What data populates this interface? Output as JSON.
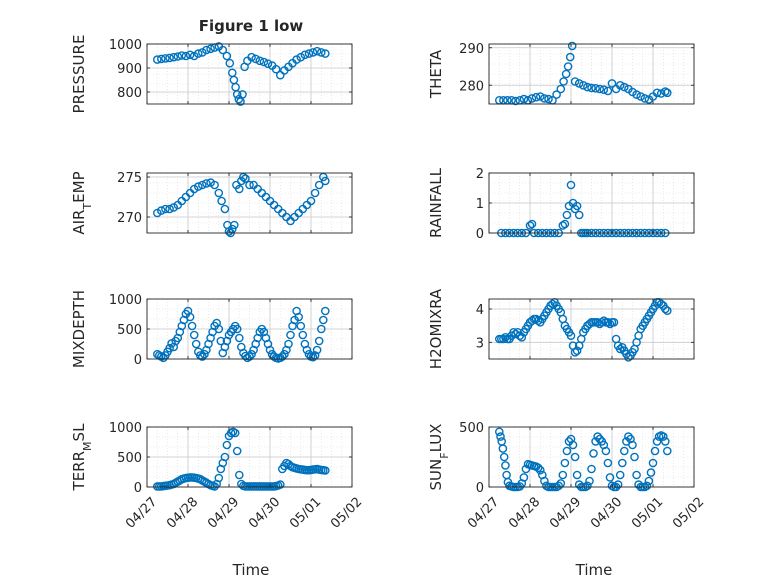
{
  "figure": {
    "title": "Figure 1 low",
    "xlabel": "Time",
    "marker_color": "#0072BD",
    "axis_color": "#262626",
    "grid_color": "#d9d9d9"
  },
  "x_axis": {
    "type": "date",
    "range": [
      "04/27",
      "05/02"
    ],
    "ticks": [
      "04/27",
      "04/28",
      "04/29",
      "04/30",
      "05/01",
      "05/02"
    ],
    "tick_values": [
      0,
      1,
      2,
      3,
      4,
      5
    ]
  },
  "chart_data": [
    {
      "type": "scatter",
      "ylabel": "PRESSURE",
      "ylim": [
        750,
        1000
      ],
      "yticks": [
        800,
        900,
        1000
      ],
      "grid": "on",
      "x": [
        0.25,
        0.35,
        0.45,
        0.55,
        0.65,
        0.75,
        0.85,
        0.95,
        1.05,
        1.15,
        1.25,
        1.35,
        1.45,
        1.55,
        1.65,
        1.75,
        1.85,
        1.95,
        2.02,
        2.08,
        2.12,
        2.16,
        2.2,
        2.24,
        2.28,
        2.33,
        2.38,
        2.45,
        2.55,
        2.65,
        2.75,
        2.85,
        2.95,
        3.05,
        3.15,
        3.25,
        3.35,
        3.45,
        3.55,
        3.65,
        3.75,
        3.85,
        3.95,
        4.05,
        4.15,
        4.25,
        4.35
      ],
      "y": [
        935,
        938,
        940,
        942,
        945,
        948,
        952,
        950,
        955,
        950,
        960,
        965,
        975,
        980,
        985,
        990,
        975,
        950,
        920,
        880,
        850,
        820,
        790,
        770,
        760,
        790,
        905,
        930,
        945,
        938,
        930,
        925,
        918,
        910,
        895,
        870,
        890,
        905,
        920,
        935,
        945,
        955,
        960,
        965,
        970,
        965,
        960
      ]
    },
    {
      "type": "scatter",
      "ylabel": "THETA",
      "ylim": [
        275,
        291
      ],
      "yticks": [
        280,
        290
      ],
      "grid": "on",
      "x": [
        0.25,
        0.35,
        0.45,
        0.55,
        0.65,
        0.75,
        0.85,
        0.95,
        1.05,
        1.15,
        1.25,
        1.35,
        1.45,
        1.55,
        1.65,
        1.75,
        1.82,
        1.88,
        1.93,
        1.98,
        2.03,
        2.1,
        2.2,
        2.3,
        2.4,
        2.5,
        2.6,
        2.7,
        2.8,
        2.9,
        3.0,
        3.1,
        3.2,
        3.3,
        3.4,
        3.5,
        3.6,
        3.7,
        3.8,
        3.9,
        4.0,
        4.1,
        4.2,
        4.3,
        4.35
      ],
      "y": [
        276,
        276,
        276,
        276,
        275.8,
        276,
        276.3,
        276,
        276.5,
        276.8,
        277,
        276.5,
        276.3,
        276,
        277.5,
        279,
        281,
        283,
        285,
        287.5,
        290.5,
        281,
        280.5,
        280,
        279.5,
        279.3,
        279.2,
        279,
        278.8,
        278.5,
        280.5,
        279,
        280,
        279.5,
        279,
        278.2,
        277.5,
        277,
        276.5,
        276.2,
        277,
        278,
        277.8,
        278.3,
        278
      ]
    },
    {
      "type": "scatter",
      "ylabel": "AIR_TEMP",
      "ylabel_display": {
        "base": "AIR",
        "sub": "T",
        "rest": "EMP"
      },
      "ylim": [
        268,
        275.5
      ],
      "yticks": [
        270,
        275
      ],
      "grid": "on",
      "x": [
        0.25,
        0.35,
        0.45,
        0.55,
        0.65,
        0.75,
        0.85,
        0.95,
        1.05,
        1.15,
        1.25,
        1.35,
        1.45,
        1.55,
        1.65,
        1.75,
        1.82,
        1.9,
        1.96,
        2.0,
        2.04,
        2.08,
        2.13,
        2.18,
        2.25,
        2.3,
        2.35,
        2.4,
        2.5,
        2.6,
        2.7,
        2.8,
        2.9,
        3.0,
        3.1,
        3.2,
        3.3,
        3.4,
        3.5,
        3.6,
        3.7,
        3.8,
        3.9,
        4.0,
        4.1,
        4.2,
        4.3,
        4.35
      ],
      "y": [
        270.5,
        270.8,
        271,
        271,
        271.2,
        271.5,
        272,
        272.5,
        273,
        273.5,
        273.8,
        274,
        274.2,
        274.3,
        274,
        273,
        272,
        271,
        269,
        268.2,
        268,
        268.5,
        269,
        274,
        273.5,
        274.5,
        275,
        274.8,
        274,
        274,
        273.5,
        273,
        272.5,
        272,
        271.5,
        271,
        270.5,
        270,
        269.5,
        270,
        270.5,
        271,
        271.5,
        272,
        273,
        274,
        275,
        274.5
      ]
    },
    {
      "type": "scatter",
      "ylabel": "RAINFALL",
      "ylim": [
        0,
        2
      ],
      "yticks": [
        0,
        1,
        2
      ],
      "grid": "on",
      "x": [
        0.3,
        0.4,
        0.5,
        0.6,
        0.7,
        0.8,
        0.9,
        1.0,
        1.05,
        1.1,
        1.2,
        1.3,
        1.4,
        1.5,
        1.6,
        1.7,
        1.8,
        1.85,
        1.9,
        1.95,
        2.0,
        2.05,
        2.1,
        2.15,
        2.2,
        2.25,
        2.3,
        2.35,
        2.4,
        2.5,
        2.6,
        2.7,
        2.8,
        2.9,
        3.0,
        3.1,
        3.2,
        3.3,
        3.4,
        3.5,
        3.6,
        3.7,
        3.8,
        3.9,
        4.0,
        4.1,
        4.2,
        4.3
      ],
      "y": [
        0,
        0,
        0,
        0,
        0,
        0,
        0,
        0.25,
        0.3,
        0,
        0,
        0,
        0,
        0,
        0,
        0,
        0.25,
        0.3,
        0.6,
        0.9,
        1.6,
        1.0,
        0.8,
        0.9,
        0.6,
        0,
        0,
        0,
        0,
        0,
        0,
        0,
        0,
        0,
        0,
        0,
        0,
        0,
        0,
        0,
        0,
        0,
        0,
        0,
        0,
        0,
        0,
        0
      ]
    },
    {
      "type": "scatter",
      "ylabel": "MIXDEPTH",
      "ylim": [
        0,
        1000
      ],
      "yticks": [
        0,
        500,
        1000
      ],
      "grid": "on",
      "x": [
        0.25,
        0.3,
        0.35,
        0.4,
        0.45,
        0.5,
        0.55,
        0.6,
        0.65,
        0.7,
        0.75,
        0.8,
        0.85,
        0.9,
        0.95,
        1.0,
        1.05,
        1.1,
        1.15,
        1.2,
        1.25,
        1.3,
        1.35,
        1.4,
        1.45,
        1.5,
        1.55,
        1.6,
        1.65,
        1.7,
        1.75,
        1.8,
        1.85,
        1.9,
        1.95,
        2.0,
        2.05,
        2.1,
        2.15,
        2.2,
        2.25,
        2.3,
        2.35,
        2.4,
        2.45,
        2.5,
        2.55,
        2.6,
        2.65,
        2.7,
        2.75,
        2.8,
        2.85,
        2.9,
        2.95,
        3.0,
        3.05,
        3.1,
        3.15,
        3.2,
        3.25,
        3.3,
        3.35,
        3.4,
        3.45,
        3.5,
        3.55,
        3.6,
        3.65,
        3.7,
        3.75,
        3.8,
        3.85,
        3.9,
        3.95,
        4.0,
        4.05,
        4.1,
        4.15,
        4.2,
        4.25,
        4.3,
        4.35
      ],
      "y": [
        80,
        60,
        40,
        20,
        60,
        120,
        180,
        260,
        200,
        300,
        350,
        450,
        550,
        650,
        750,
        800,
        700,
        550,
        400,
        250,
        120,
        60,
        40,
        80,
        150,
        250,
        350,
        450,
        550,
        600,
        500,
        300,
        100,
        200,
        300,
        400,
        450,
        500,
        550,
        500,
        350,
        200,
        100,
        50,
        20,
        40,
        80,
        150,
        250,
        350,
        450,
        500,
        450,
        350,
        250,
        150,
        80,
        40,
        20,
        10,
        20,
        40,
        80,
        150,
        250,
        400,
        550,
        650,
        800,
        700,
        550,
        400,
        250,
        150,
        80,
        40,
        30,
        60,
        150,
        300,
        500,
        650,
        800
      ]
    },
    {
      "type": "scatter",
      "ylabel": "H2OMIXRA",
      "ylim": [
        2.5,
        4.3
      ],
      "yticks": [
        3,
        4
      ],
      "grid": "on",
      "x": [
        0.25,
        0.3,
        0.35,
        0.4,
        0.45,
        0.5,
        0.55,
        0.6,
        0.65,
        0.7,
        0.75,
        0.8,
        0.85,
        0.9,
        0.95,
        1.0,
        1.05,
        1.1,
        1.15,
        1.2,
        1.25,
        1.3,
        1.35,
        1.4,
        1.45,
        1.5,
        1.55,
        1.6,
        1.65,
        1.7,
        1.75,
        1.8,
        1.85,
        1.9,
        1.95,
        2.0,
        2.05,
        2.1,
        2.15,
        2.2,
        2.25,
        2.3,
        2.35,
        2.4,
        2.45,
        2.5,
        2.55,
        2.6,
        2.65,
        2.7,
        2.75,
        2.8,
        2.85,
        2.9,
        2.95,
        3.0,
        3.05,
        3.1,
        3.15,
        3.2,
        3.25,
        3.3,
        3.35,
        3.4,
        3.45,
        3.5,
        3.55,
        3.6,
        3.65,
        3.7,
        3.75,
        3.8,
        3.85,
        3.9,
        3.95,
        4.0,
        4.05,
        4.1,
        4.15,
        4.2,
        4.25,
        4.3,
        4.35
      ],
      "y": [
        3.1,
        3.1,
        3.1,
        3.15,
        3.1,
        3.1,
        3.2,
        3.3,
        3.25,
        3.3,
        3.2,
        3.15,
        3.3,
        3.4,
        3.5,
        3.6,
        3.65,
        3.7,
        3.7,
        3.65,
        3.6,
        3.7,
        3.8,
        3.9,
        4.0,
        4.1,
        4.15,
        4.2,
        4.1,
        4.0,
        3.9,
        3.7,
        3.5,
        3.4,
        3.3,
        3.2,
        2.9,
        2.7,
        2.75,
        2.9,
        3.1,
        3.3,
        3.4,
        3.5,
        3.55,
        3.6,
        3.6,
        3.6,
        3.6,
        3.55,
        3.6,
        3.65,
        3.6,
        3.6,
        3.55,
        3.6,
        3.6,
        3.1,
        2.9,
        2.8,
        2.85,
        2.75,
        2.65,
        2.55,
        2.6,
        2.7,
        2.8,
        3.0,
        3.2,
        3.4,
        3.5,
        3.6,
        3.7,
        3.8,
        3.9,
        4.0,
        4.1,
        4.2,
        4.2,
        4.15,
        4.1,
        4.0,
        3.95
      ]
    },
    {
      "type": "scatter",
      "ylabel": "TERR_MSL",
      "ylabel_display": {
        "base": "TERR",
        "sub": "M",
        "rest": "SL"
      },
      "ylim": [
        0,
        1000
      ],
      "yticks": [
        0,
        500,
        1000
      ],
      "grid": "on",
      "x": [
        0.25,
        0.3,
        0.35,
        0.4,
        0.45,
        0.5,
        0.55,
        0.6,
        0.65,
        0.7,
        0.75,
        0.8,
        0.85,
        0.9,
        0.95,
        1.0,
        1.05,
        1.1,
        1.15,
        1.2,
        1.25,
        1.3,
        1.35,
        1.4,
        1.45,
        1.5,
        1.55,
        1.6,
        1.65,
        1.7,
        1.75,
        1.8,
        1.85,
        1.9,
        1.95,
        2.0,
        2.05,
        2.1,
        2.15,
        2.2,
        2.25,
        2.3,
        2.35,
        2.4,
        2.45,
        2.5,
        2.55,
        2.6,
        2.65,
        2.7,
        2.75,
        2.8,
        2.85,
        2.9,
        2.95,
        3.0,
        3.05,
        3.1,
        3.15,
        3.2,
        3.25,
        3.3,
        3.35,
        3.4,
        3.45,
        3.5,
        3.55,
        3.6,
        3.65,
        3.7,
        3.75,
        3.8,
        3.85,
        3.9,
        3.95,
        4.0,
        4.05,
        4.1,
        4.15,
        4.2,
        4.25,
        4.3,
        4.35
      ],
      "y": [
        10,
        10,
        10,
        15,
        20,
        25,
        30,
        40,
        50,
        70,
        90,
        110,
        130,
        140,
        150,
        155,
        160,
        160,
        155,
        150,
        140,
        130,
        110,
        90,
        70,
        50,
        30,
        20,
        10,
        50,
        150,
        300,
        400,
        500,
        700,
        850,
        900,
        920,
        900,
        600,
        200,
        50,
        20,
        10,
        10,
        10,
        10,
        10,
        10,
        10,
        10,
        10,
        10,
        10,
        10,
        10,
        10,
        10,
        15,
        25,
        40,
        300,
        350,
        400,
        380,
        350,
        330,
        320,
        310,
        300,
        295,
        290,
        285,
        280,
        280,
        285,
        290,
        295,
        300,
        290,
        285,
        280,
        275
      ]
    },
    {
      "type": "scatter",
      "ylabel": "SUN_FLUX",
      "ylabel_display": {
        "base": "SUN",
        "sub": "F",
        "rest": "LUX"
      },
      "ylim": [
        0,
        500
      ],
      "yticks": [
        0,
        500
      ],
      "grid": "on",
      "x": [
        0.25,
        0.28,
        0.31,
        0.34,
        0.37,
        0.4,
        0.43,
        0.46,
        0.5,
        0.55,
        0.6,
        0.65,
        0.7,
        0.75,
        0.8,
        0.85,
        0.9,
        0.95,
        1.0,
        1.05,
        1.1,
        1.15,
        1.2,
        1.25,
        1.3,
        1.35,
        1.4,
        1.45,
        1.5,
        1.55,
        1.6,
        1.65,
        1.7,
        1.75,
        1.8,
        1.85,
        1.9,
        1.95,
        2.0,
        2.05,
        2.1,
        2.15,
        2.2,
        2.25,
        2.3,
        2.35,
        2.4,
        2.45,
        2.5,
        2.55,
        2.6,
        2.65,
        2.7,
        2.75,
        2.8,
        2.85,
        2.9,
        2.95,
        3.0,
        3.05,
        3.1,
        3.15,
        3.2,
        3.25,
        3.3,
        3.35,
        3.4,
        3.45,
        3.5,
        3.55,
        3.6,
        3.65,
        3.7,
        3.75,
        3.8,
        3.85,
        3.9,
        3.95,
        4.0,
        4.05,
        4.1,
        4.15,
        4.2,
        4.25,
        4.3,
        4.35
      ],
      "y": [
        460,
        420,
        380,
        320,
        250,
        180,
        100,
        40,
        10,
        5,
        0,
        0,
        0,
        5,
        30,
        80,
        150,
        190,
        185,
        180,
        175,
        170,
        160,
        140,
        100,
        50,
        10,
        0,
        0,
        0,
        0,
        0,
        10,
        30,
        100,
        200,
        300,
        380,
        400,
        350,
        250,
        100,
        20,
        0,
        0,
        0,
        10,
        50,
        150,
        280,
        380,
        420,
        400,
        380,
        350,
        300,
        200,
        80,
        10,
        0,
        0,
        20,
        100,
        200,
        300,
        380,
        420,
        400,
        350,
        250,
        100,
        20,
        0,
        0,
        0,
        10,
        50,
        120,
        200,
        300,
        380,
        420,
        430,
        420,
        380,
        300
      ]
    }
  ]
}
